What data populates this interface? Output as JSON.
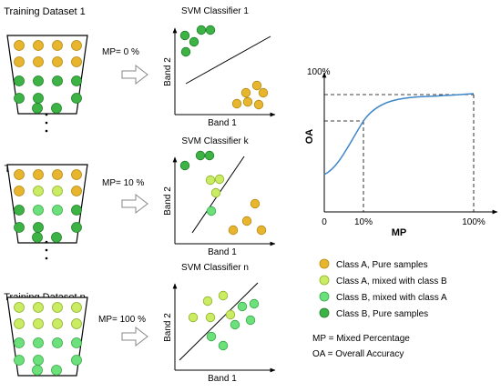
{
  "classes": {
    "a_pure": {
      "color": "#E8B52F",
      "stroke": "#B58A12",
      "label": "Class A, Pure samples"
    },
    "a_mixed": {
      "color": "#C9EC63",
      "stroke": "#8FB12C",
      "label": "Class A, mixed with class B"
    },
    "b_mixed": {
      "color": "#6BE07B",
      "stroke": "#35A845",
      "label": "Class B, mixed with class A"
    },
    "b_pure": {
      "color": "#3DB346",
      "stroke": "#1E7F27",
      "label": "Class B, Pure samples"
    }
  },
  "datasets": [
    {
      "title": "Training Dataset 1",
      "mp_label": "MP= 0 %",
      "classifier_title": "SVM Classifier 1",
      "bucket_rows": [
        [
          "a_pure",
          "a_pure",
          "a_pure",
          "a_pure"
        ],
        [
          "a_pure",
          "a_pure",
          "a_pure",
          "a_pure"
        ],
        [
          "b_pure",
          "b_pure",
          "b_pure",
          "b_pure"
        ],
        [
          "b_pure",
          "b_pure",
          "b_pure"
        ],
        [
          "b_pure",
          "b_pure"
        ]
      ]
    },
    {
      "title": "Training Dataset k",
      "mp_label": "MP= 10 %",
      "classifier_title": "SVM Classifier k",
      "bucket_rows": [
        [
          "a_pure",
          "a_pure",
          "a_pure",
          "a_pure"
        ],
        [
          "a_pure",
          "a_mixed",
          "a_mixed",
          "a_pure"
        ],
        [
          "b_pure",
          "b_mixed",
          "b_mixed",
          "b_pure"
        ],
        [
          "b_pure",
          "b_pure",
          "b_pure"
        ],
        [
          "b_pure",
          "b_pure"
        ]
      ]
    },
    {
      "title": "Training Dataset n",
      "mp_label": "MP= 100 %",
      "classifier_title": "SVM Classifier n",
      "bucket_rows": [
        [
          "a_mixed",
          "a_mixed",
          "a_mixed",
          "a_mixed"
        ],
        [
          "a_mixed",
          "a_mixed",
          "a_mixed",
          "a_mixed"
        ],
        [
          "b_mixed",
          "b_mixed",
          "b_mixed",
          "b_mixed"
        ],
        [
          "b_mixed",
          "b_mixed",
          "b_mixed"
        ],
        [
          "b_mixed",
          "b_mixed"
        ]
      ]
    }
  ],
  "scatter_axes": {
    "x": "Band 1",
    "y": "Band 2"
  },
  "ellipsis": "·\n·\n·",
  "oa_chart": {
    "ylabel": "OA",
    "xlabel": "MP",
    "y_top_tick": "100%",
    "x_ticks": [
      "0",
      "10%",
      "100%"
    ]
  },
  "legend_order": [
    "a_pure",
    "a_mixed",
    "b_mixed",
    "b_pure"
  ],
  "notes": [
    "MP = Mixed Percentage",
    "OA = Overall Accuracy"
  ]
}
